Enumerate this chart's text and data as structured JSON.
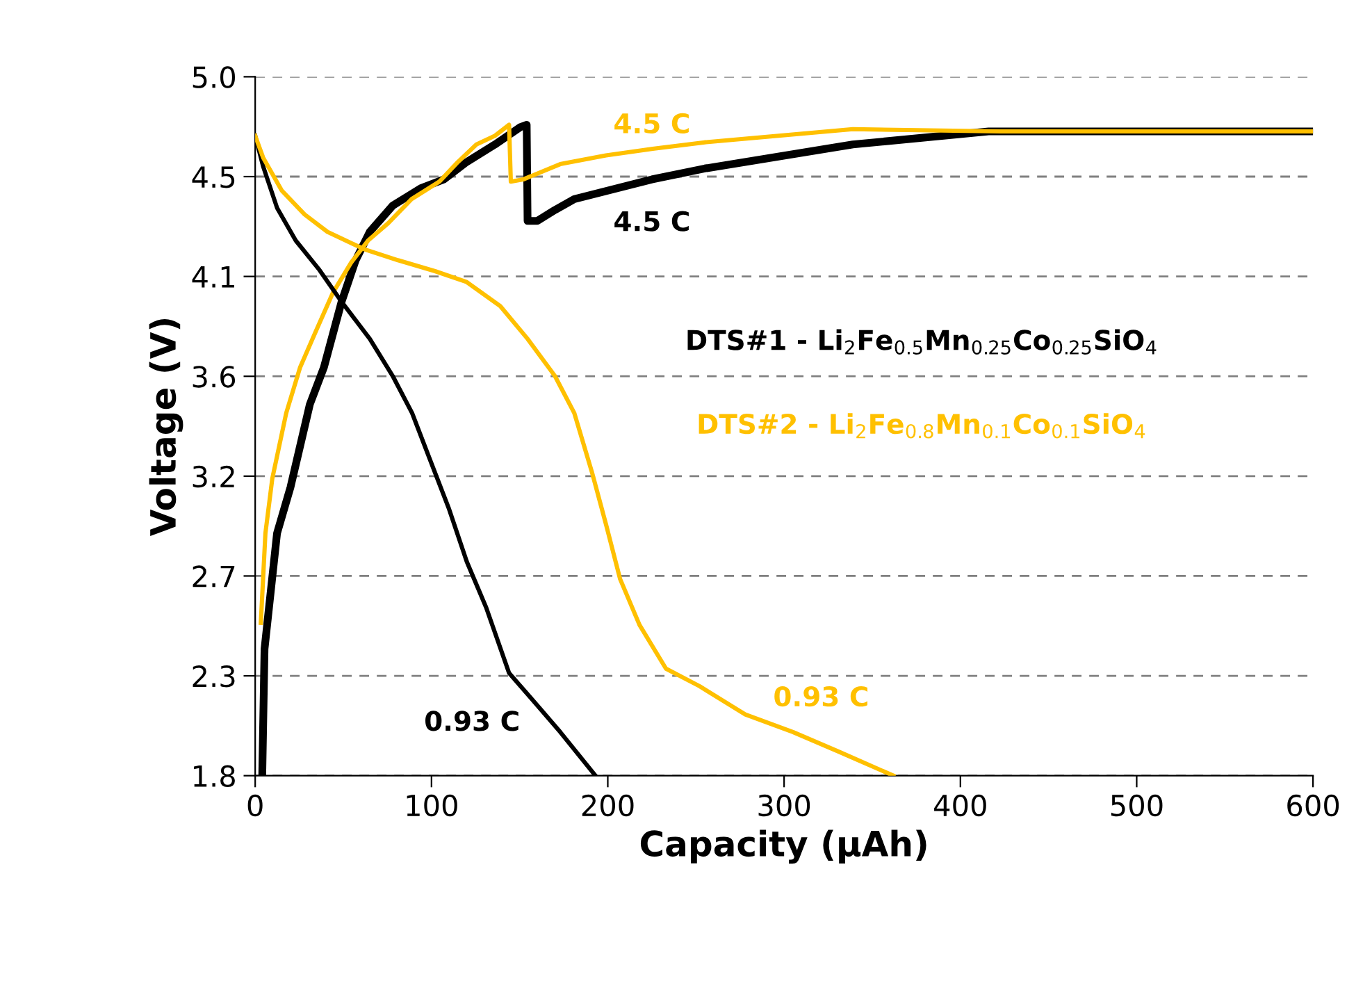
{
  "chart_data": {
    "type": "line",
    "xlabel": "Capacity (µAh)",
    "ylabel": "Voltage (V)",
    "xlim": [
      0,
      600
    ],
    "xticks": [
      0,
      100,
      200,
      300,
      400,
      500,
      600
    ],
    "ylim": [
      1.8,
      5.0
    ],
    "yticks": [
      1.8,
      {
        "value": 2.2571,
        "label": "2.3"
      },
      {
        "value": 2.7143,
        "label": "2.7"
      },
      {
        "value": 3.1714,
        "label": "3.2"
      },
      {
        "value": 3.6286,
        "label": "3.6"
      },
      {
        "value": 4.0857,
        "label": "4.1"
      },
      {
        "value": 4.5429,
        "label": "4.5"
      },
      {
        "value": 5.0,
        "label": "5.0"
      }
    ],
    "grid": "y",
    "legend": false,
    "marker": "none",
    "line_style": "solid",
    "series": [
      {
        "name": "DTS#1 - Li$_{2}$Fe$_{0.5}$Mn$_{0.25}$Co$_{0.25}$SiO$_{4}$",
        "color": "#000000",
        "x": [
          4,
          5.3,
          12.4,
          20,
          31,
          39,
          49,
          57,
          65,
          78,
          94,
          107,
          120,
          136,
          150.5,
          154,
          154.5,
          160,
          170,
          181,
          225,
          255,
          339,
          416,
          500,
          600
        ],
        "values": [
          1.8,
          2.38,
          2.91,
          3.12,
          3.5,
          3.67,
          3.97,
          4.16,
          4.29,
          4.41,
          4.49,
          4.53,
          4.61,
          4.69,
          4.77,
          4.78,
          4.34,
          4.34,
          4.39,
          4.44,
          4.53,
          4.58,
          4.69,
          4.75,
          4.75,
          4.75
        ]
      },
      {
        "name": "DTS#2 - Li$_{2}$Fe$_{0.8}$Mn$_{0.1}$Co$_{0.1}$SiO$_{4}$",
        "color": "#ffc000",
        "x": [
          3.2,
          5.8,
          9.7,
          17.6,
          25.5,
          34.7,
          44,
          54.5,
          64,
          75.5,
          88.7,
          104.5,
          115,
          125.5,
          136,
          144,
          145,
          152,
          173,
          199,
          225.5,
          255,
          339,
          423,
          500,
          600
        ],
        "values": [
          2.5,
          2.91,
          3.16,
          3.46,
          3.67,
          3.84,
          4.01,
          4.15,
          4.25,
          4.33,
          4.44,
          4.52,
          4.61,
          4.69,
          4.73,
          4.78,
          4.52,
          4.53,
          4.6,
          4.64,
          4.67,
          4.7,
          4.76,
          4.75,
          4.75,
          4.75
        ]
      },
      {
        "color": "#000000",
        "x": [
          0,
          4.5,
          12.4,
          23,
          36,
          49,
          65,
          78,
          89,
          99,
          110,
          120,
          131,
          144,
          157,
          173,
          193
        ],
        "values": [
          4.73,
          4.59,
          4.4,
          4.25,
          4.12,
          3.97,
          3.8,
          3.63,
          3.46,
          3.25,
          3.02,
          2.78,
          2.57,
          2.27,
          2.15,
          2.0,
          1.8
        ]
      },
      {
        "color": "#ffc000",
        "x": [
          0,
          4.5,
          15,
          28,
          41,
          62,
          81,
          102,
          120,
          139,
          154.5,
          170,
          181,
          191,
          199,
          207,
          218,
          233,
          252,
          278,
          305,
          331,
          362
        ],
        "values": [
          4.73,
          4.63,
          4.48,
          4.37,
          4.29,
          4.21,
          4.16,
          4.11,
          4.06,
          3.95,
          3.8,
          3.63,
          3.46,
          3.19,
          2.95,
          2.7,
          2.49,
          2.29,
          2.21,
          2.08,
          2.0,
          1.91,
          1.8
        ]
      }
    ],
    "annotations": [
      "4.5 C",
      "4.5 C",
      "0.93 C",
      "0.93 C"
    ]
  }
}
